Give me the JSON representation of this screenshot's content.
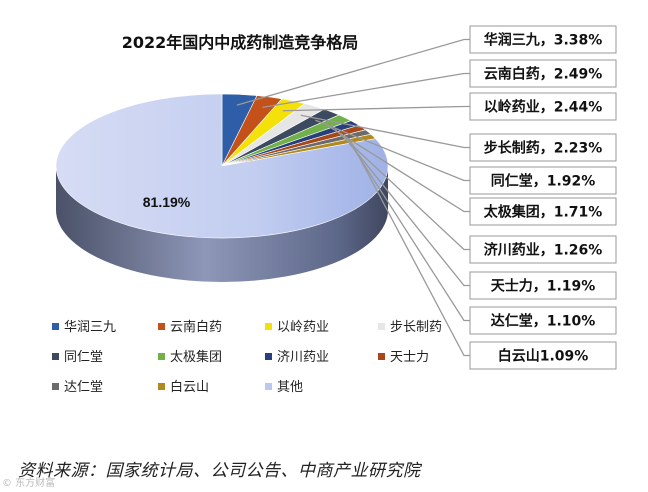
{
  "chart_data": {
    "type": "pie",
    "title": "2022年国内中成药制造竞争格局",
    "slices": [
      {
        "name": "华润三九",
        "value": 3.38,
        "label": "华润三九，3.38%",
        "color": "#2e5ea8"
      },
      {
        "name": "云南白药",
        "value": 2.49,
        "label": "云南白药，2.49%",
        "color": "#c4501a"
      },
      {
        "name": "以岭药业",
        "value": 2.44,
        "label": "以岭药业，2.44%",
        "color": "#f5e10a"
      },
      {
        "name": "步长制药",
        "value": 2.23,
        "label": "步长制药，2.23%",
        "color": "#e6e6e6"
      },
      {
        "name": "同仁堂",
        "value": 1.92,
        "label": "同仁堂，1.92%",
        "color": "#3b4a5e"
      },
      {
        "name": "太极集团",
        "value": 1.71,
        "label": "太极集团，1.71%",
        "color": "#72b14a"
      },
      {
        "name": "济川药业",
        "value": 1.26,
        "label": "济川药业，1.26%",
        "color": "#25407a"
      },
      {
        "name": "天士力",
        "value": 1.19,
        "label": "天士力，1.19%",
        "color": "#a8481a"
      },
      {
        "name": "达仁堂",
        "value": 1.1,
        "label": "达仁堂，1.10%",
        "color": "#6b6b6b"
      },
      {
        "name": "白云山",
        "value": 1.09,
        "label": "白云山1.09%",
        "color": "#b08a1e"
      },
      {
        "name": "其他",
        "value": 81.19,
        "label": "81.19%",
        "color": "#bcc8ee"
      }
    ],
    "legend_position": "bottom"
  },
  "source": "资料来源：国家统计局、公司公告、中商产业研究院",
  "watermark": "© 东方财富"
}
